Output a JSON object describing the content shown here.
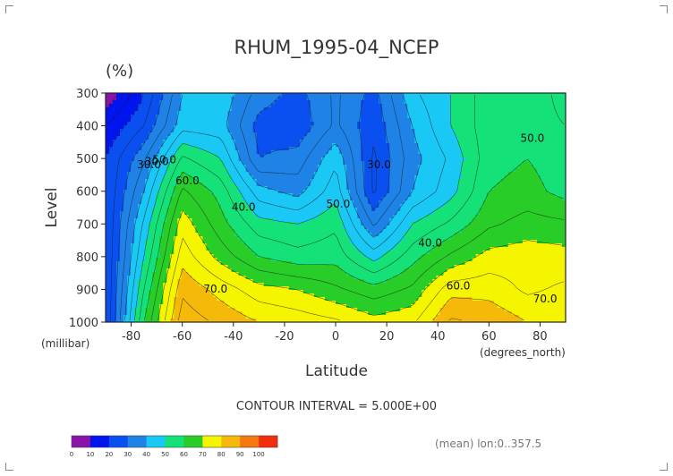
{
  "chart_data": {
    "type": "heatmap",
    "title": "RHUM_1995-04_NCEP",
    "units": "(%)",
    "xlabel": "Latitude",
    "ylabel": "Level",
    "x_unit": "(degrees_north)",
    "y_unit": "(millibar)",
    "xlim": [
      -90,
      90
    ],
    "ylim": [
      1000,
      300
    ],
    "x_ticks": [
      -80,
      -60,
      -40,
      -20,
      0,
      20,
      40,
      60,
      80
    ],
    "y_ticks": [
      300,
      400,
      500,
      600,
      700,
      800,
      900,
      1000
    ],
    "x_grid": [
      -90,
      -75,
      -60,
      -45,
      -30,
      -15,
      0,
      15,
      30,
      45,
      60,
      75,
      90
    ],
    "levels": [
      300,
      400,
      500,
      600,
      700,
      800,
      900,
      1000
    ],
    "values": [
      [
        5,
        20,
        40,
        44,
        33,
        28,
        36,
        28,
        44,
        50,
        58,
        60,
        52
      ],
      [
        15,
        25,
        43,
        42,
        28,
        26,
        36,
        26,
        40,
        50,
        58,
        58,
        55
      ],
      [
        20,
        34,
        56,
        50,
        30,
        32,
        44,
        24,
        38,
        46,
        58,
        60,
        57
      ],
      [
        20,
        40,
        66,
        58,
        42,
        38,
        48,
        24,
        40,
        48,
        60,
        62,
        58
      ],
      [
        20,
        46,
        73,
        62,
        52,
        50,
        54,
        34,
        50,
        56,
        64,
        67,
        66
      ],
      [
        20,
        50,
        78,
        68,
        60,
        57,
        58,
        48,
        58,
        66,
        72,
        73,
        72
      ],
      [
        20,
        55,
        84,
        78,
        72,
        70,
        66,
        62,
        66,
        78,
        78,
        74,
        76
      ],
      [
        20,
        60,
        88,
        84,
        80,
        78,
        76,
        72,
        74,
        86,
        84,
        80,
        80
      ]
    ],
    "contour_interval_text": "CONTOUR INTERVAL = 5.000E+00",
    "contour_labels": [
      {
        "text": "30.0",
        "x": -73,
        "y": 520
      },
      {
        "text": "30.0",
        "x": -70,
        "y": 510
      },
      {
        "text": "50.0",
        "x": -67,
        "y": 505
      },
      {
        "text": "60.0",
        "x": -58,
        "y": 570
      },
      {
        "text": "40.0",
        "x": -36,
        "y": 650
      },
      {
        "text": "50.0",
        "x": 1,
        "y": 640
      },
      {
        "text": "30.0",
        "x": 17,
        "y": 520
      },
      {
        "text": "40.0",
        "x": 37,
        "y": 760
      },
      {
        "text": "60.0",
        "x": 48,
        "y": 890
      },
      {
        "text": "70.0",
        "x": -47,
        "y": 900
      },
      {
        "text": "50.0",
        "x": 77,
        "y": 440
      },
      {
        "text": "70.0",
        "x": 82,
        "y": 930
      }
    ],
    "colorbar": {
      "ticks": [
        "0",
        "10",
        "20",
        "30",
        "40",
        "50",
        "60",
        "70",
        "80",
        "90",
        "100"
      ],
      "colors": [
        "#8a14a8",
        "#0014f0",
        "#0a50f0",
        "#1e82e6",
        "#19c8f5",
        "#14e178",
        "#28cd28",
        "#f5f500",
        "#f5b90a",
        "#f5780f",
        "#f52d0f"
      ]
    },
    "footnote": "(mean) lon:0..357.5"
  }
}
